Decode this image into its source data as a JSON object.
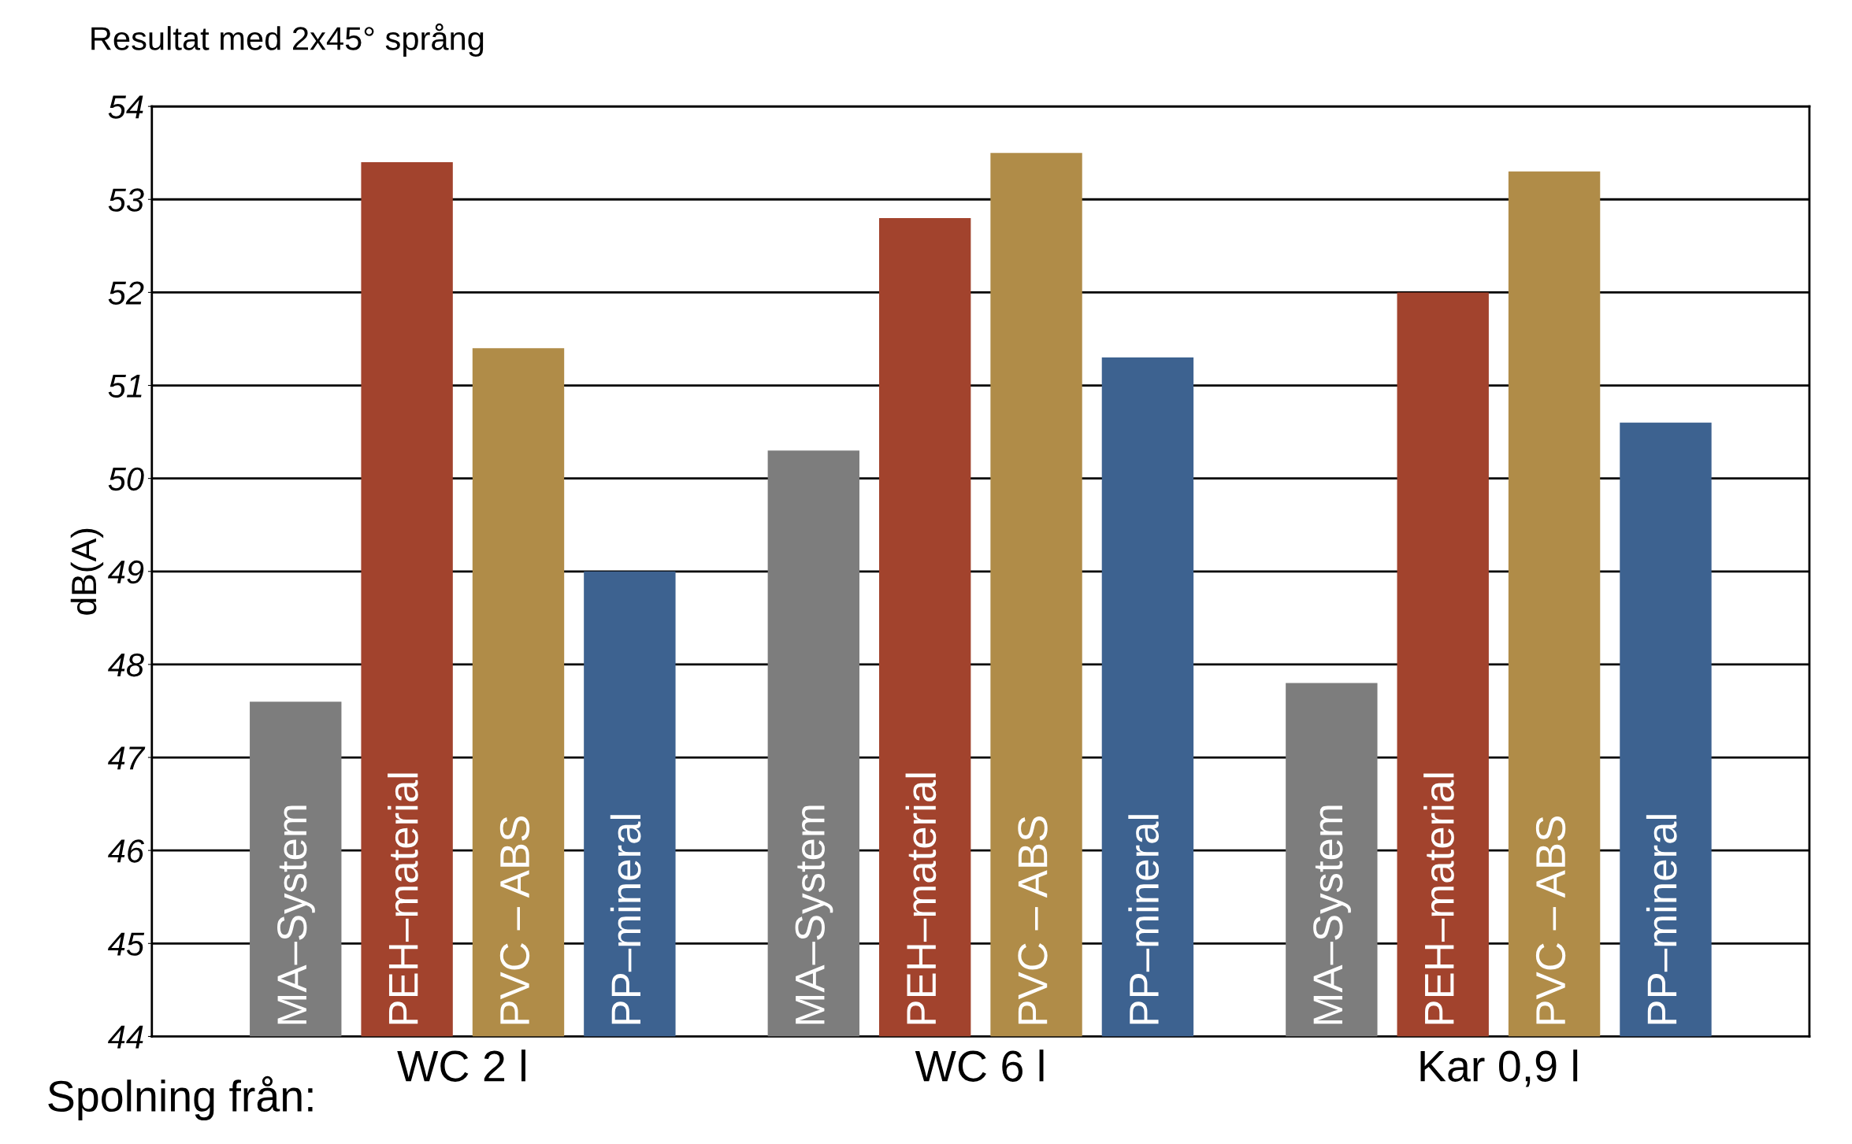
{
  "chart_data": {
    "type": "bar",
    "title": "Resultat med 2x45° språng",
    "ylabel": "dB(A)",
    "annotations": [
      "Spolning från:"
    ],
    "categories": [
      "WC 2 l",
      "WC 6 l",
      "Kar 0,9 l"
    ],
    "series": [
      {
        "name": "MA–System",
        "color": "#7d7d7d",
        "values": [
          47.6,
          50.3,
          47.8
        ]
      },
      {
        "name": "PEH–material",
        "color": "#a2432d",
        "values": [
          53.4,
          52.8,
          52.0
        ]
      },
      {
        "name": "PVC – ABS",
        "color": "#b08c48",
        "values": [
          51.4,
          53.5,
          53.3
        ]
      },
      {
        "name": "PP–mineral",
        "color": "#3d6290",
        "values": [
          49.0,
          51.3,
          50.6
        ]
      }
    ],
    "ylim": [
      44,
      54
    ],
    "yticks": [
      44,
      45,
      46,
      47,
      48,
      49,
      50,
      51,
      52,
      53,
      54
    ],
    "grid": "y",
    "legend": false
  }
}
